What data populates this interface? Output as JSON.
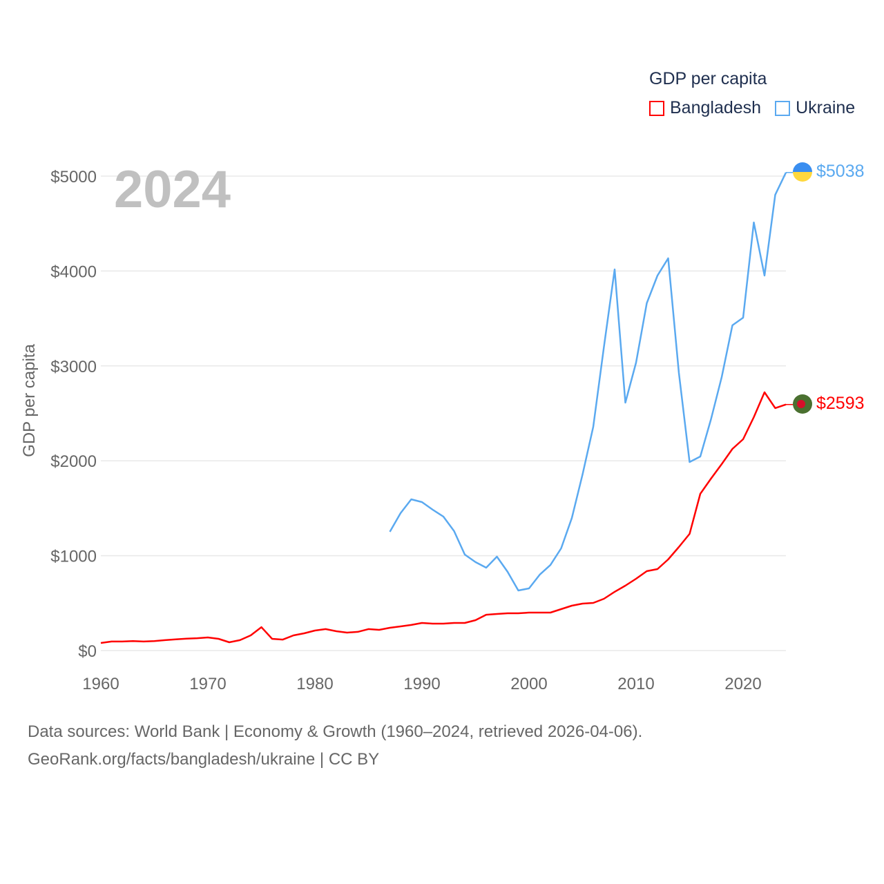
{
  "legend": {
    "title": "GDP per capita",
    "items": [
      {
        "label": "Bangladesh",
        "color": "#ff0000"
      },
      {
        "label": "Ukraine",
        "color": "#5aa9f0"
      }
    ]
  },
  "year_label": "2024",
  "end_labels": {
    "ukraine": "$5038",
    "bangladesh": "$2593"
  },
  "source": {
    "line1": "Data sources: World Bank | Economy & Growth (1960–2024, retrieved 2026-04-06).",
    "line2": "GeoRank.org/facts/bangladesh/ukraine | CC BY"
  },
  "chart_data": {
    "type": "line",
    "title": "GDP per capita",
    "xlabel": "",
    "ylabel": "GDP per capita",
    "xlim": [
      1960,
      2024
    ],
    "ylim": [
      0,
      5000
    ],
    "x_ticks": [
      "1960",
      "1970",
      "1980",
      "1990",
      "2000",
      "2010",
      "2020"
    ],
    "y_ticks": [
      "$0",
      "$1000",
      "$2000",
      "$3000",
      "$4000",
      "$5000"
    ],
    "grid": true,
    "legend_position": "top-right",
    "series": [
      {
        "name": "Bangladesh",
        "color": "#ff0000",
        "start_year": 1960,
        "values": [
          80,
          95,
          95,
          100,
          95,
          100,
          110,
          118,
          125,
          130,
          138,
          124,
          87,
          110,
          160,
          247,
          124,
          116,
          160,
          182,
          211,
          226,
          204,
          189,
          197,
          226,
          218,
          240,
          255,
          270,
          291,
          284,
          284,
          291,
          291,
          320,
          378,
          386,
          393,
          393,
          400,
          400,
          400,
          437,
          473,
          495,
          502,
          546,
          619,
          684,
          757,
          837,
          859,
          961,
          1092,
          1230,
          1652,
          1812,
          1965,
          2125,
          2227,
          2460,
          2722,
          2555,
          2593
        ]
      },
      {
        "name": "Ukraine",
        "color": "#5aa9f0",
        "start_year": 1987,
        "values": [
          1252,
          1448,
          1594,
          1565,
          1485,
          1412,
          1259,
          1012,
          932,
          873,
          990,
          830,
          633,
          655,
          800,
          902,
          1077,
          1397,
          1856,
          2358,
          3202,
          4017,
          2613,
          3035,
          3661,
          3952,
          4134,
          2926,
          1987,
          2045,
          2438,
          2882,
          3428,
          3508,
          4512,
          3952,
          4803,
          5038
        ]
      }
    ]
  }
}
